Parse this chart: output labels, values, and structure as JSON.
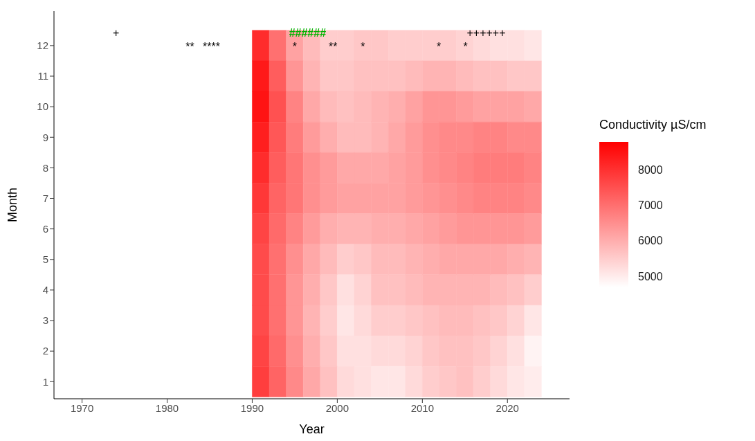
{
  "chart_data": {
    "type": "heatmap",
    "xlabel": "Year",
    "ylabel": "Month",
    "clabel": "Conductivity µS/cm",
    "x": [
      1991,
      1993,
      1995,
      1997,
      1999,
      2001,
      2003,
      2005,
      2007,
      2009,
      2011,
      2013,
      2015,
      2017,
      2019,
      2021,
      2023
    ],
    "y_categories": [
      "12",
      "11",
      "10",
      "9",
      "8",
      "7",
      "6",
      "5",
      "4",
      "3",
      "2",
      "1"
    ],
    "cells": [
      [
        8100,
        7000,
        6200,
        5800,
        5500,
        5500,
        5600,
        5600,
        5500,
        5500,
        5500,
        5500,
        5400,
        5300,
        5200,
        5200,
        5100
      ],
      [
        8400,
        7300,
        6400,
        5900,
        5600,
        5600,
        5700,
        5700,
        5700,
        5800,
        5900,
        5900,
        5800,
        5700,
        5700,
        5600,
        5600
      ],
      [
        8500,
        7500,
        6700,
        6100,
        5800,
        5700,
        5800,
        5900,
        6000,
        6200,
        6400,
        6400,
        6300,
        6200,
        6200,
        6200,
        6100
      ],
      [
        8300,
        7400,
        6800,
        6300,
        6000,
        5800,
        5800,
        5900,
        6100,
        6300,
        6500,
        6600,
        6600,
        6700,
        6700,
        6600,
        6600
      ],
      [
        8100,
        7300,
        6900,
        6500,
        6300,
        6100,
        6100,
        6100,
        6200,
        6300,
        6500,
        6600,
        6700,
        6800,
        6800,
        6800,
        6700
      ],
      [
        7900,
        7200,
        6900,
        6500,
        6300,
        6200,
        6200,
        6200,
        6200,
        6300,
        6400,
        6500,
        6600,
        6700,
        6700,
        6700,
        6600
      ],
      [
        7700,
        7100,
        6700,
        6300,
        6000,
        5900,
        5900,
        6000,
        6000,
        6100,
        6200,
        6300,
        6400,
        6400,
        6400,
        6400,
        6300
      ],
      [
        7600,
        7000,
        6500,
        6100,
        5800,
        5500,
        5600,
        5800,
        5800,
        5900,
        6000,
        6100,
        6100,
        6100,
        6100,
        6000,
        5900
      ],
      [
        7600,
        7000,
        6400,
        6000,
        5600,
        5200,
        5400,
        5700,
        5700,
        5800,
        5900,
        5900,
        5900,
        5900,
        5800,
        5700,
        5500
      ],
      [
        7600,
        7000,
        6400,
        5900,
        5500,
        5100,
        5300,
        5500,
        5500,
        5600,
        5700,
        5800,
        5800,
        5700,
        5600,
        5400,
        5100
      ],
      [
        7700,
        7100,
        6500,
        6000,
        5600,
        5200,
        5200,
        5300,
        5300,
        5400,
        5600,
        5700,
        5700,
        5600,
        5400,
        5200,
        4900
      ],
      [
        7800,
        7200,
        6600,
        6100,
        5700,
        5300,
        5200,
        5100,
        5100,
        5300,
        5500,
        5600,
        5700,
        5500,
        5300,
        5100,
        5000
      ]
    ],
    "clim": [
      4700,
      8800
    ],
    "cticks": [
      5000,
      6000,
      7000,
      8000
    ],
    "xlim": [
      1966.7,
      2027.3
    ],
    "xticks": [
      1970,
      1980,
      1990,
      2000,
      2010,
      2020
    ],
    "annotations": [
      "+",
      "** ****",
      "*",
      "######",
      "**",
      "*",
      "* *",
      "++++++"
    ],
    "grid": false
  }
}
